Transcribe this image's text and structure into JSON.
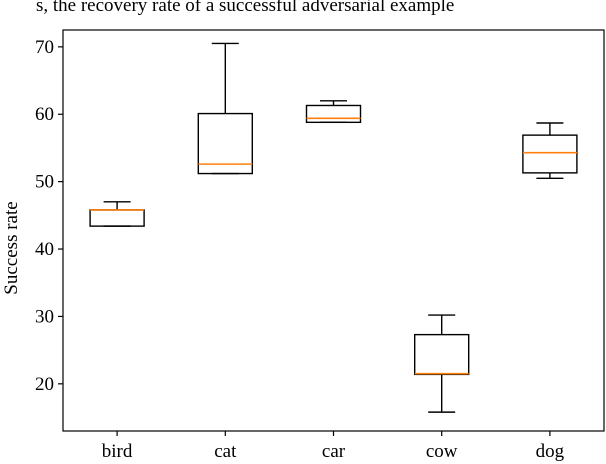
{
  "top_caption_fragment": "s, the recovery rate of a successful adversarial example",
  "chart_data": {
    "type": "box",
    "categories": [
      "bird",
      "cat",
      "car",
      "cow",
      "dog"
    ],
    "boxes": [
      {
        "category": "bird",
        "whislo": 43.4,
        "q1": 43.4,
        "med": 45.8,
        "q3": 45.8,
        "whishi": 47.0
      },
      {
        "category": "cat",
        "whislo": 51.2,
        "q1": 51.2,
        "med": 52.6,
        "q3": 60.1,
        "whishi": 70.5
      },
      {
        "category": "car",
        "whislo": 58.8,
        "q1": 58.8,
        "med": 59.4,
        "q3": 61.3,
        "whishi": 62.0
      },
      {
        "category": "cow",
        "whislo": 15.8,
        "q1": 21.4,
        "med": 21.5,
        "q3": 27.3,
        "whishi": 30.2
      },
      {
        "category": "dog",
        "whislo": 50.5,
        "q1": 51.3,
        "med": 54.3,
        "q3": 56.9,
        "whishi": 58.7
      }
    ],
    "ylabel": "Success rate",
    "xlabel": "",
    "ylim": [
      13.0,
      72.5
    ],
    "yticks": [
      20,
      30,
      40,
      50,
      60,
      70
    ],
    "grid": false,
    "colors": {
      "box": "#000000",
      "median": "#ff7f0e"
    }
  }
}
